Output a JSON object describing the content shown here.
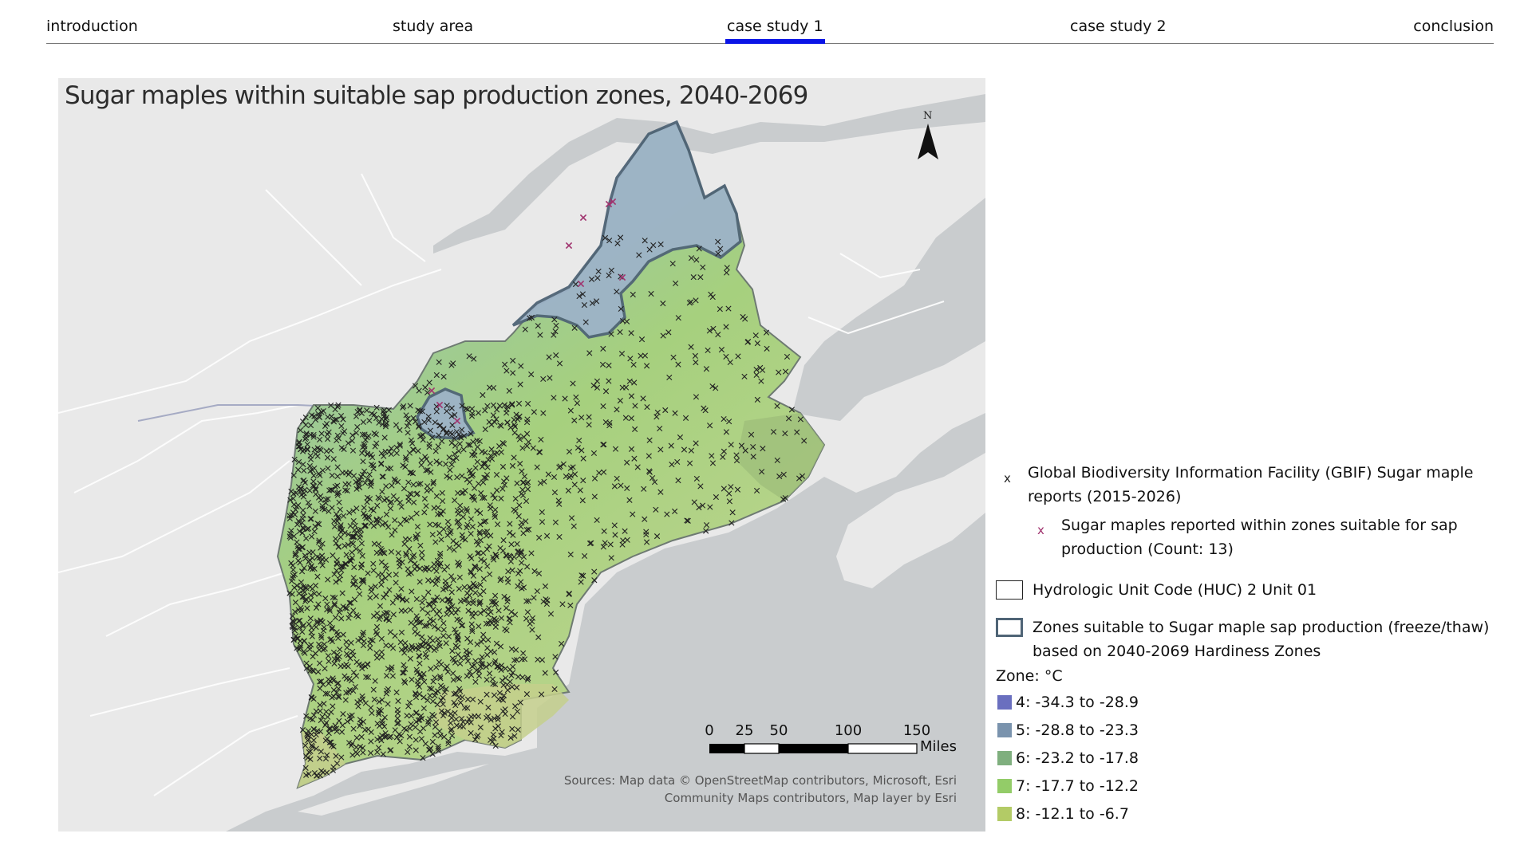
{
  "nav": {
    "items": [
      {
        "label": "introduction",
        "active": false
      },
      {
        "label": "study area",
        "active": false
      },
      {
        "label": "case study 1",
        "active": true
      },
      {
        "label": "case study 2",
        "active": false
      },
      {
        "label": "conclusion",
        "active": false
      }
    ],
    "active_color": "#0a14e6"
  },
  "map": {
    "title": "Sugar maples within suitable sap production zones, 2040-2069",
    "north_label": "N",
    "scale_bar": {
      "ticks": [
        "0",
        "25",
        "50",
        "100",
        "150"
      ],
      "unit": "Miles"
    },
    "attribution_lines": [
      "Sources: Map data © OpenStreetMap contributors, Microsoft, Esri",
      "Community Maps contributors, Map layer by Esri"
    ],
    "colors": {
      "water": "#c9ccce",
      "land": "#e9e9e9",
      "gbif_marker": "#222222",
      "suitable_marker": "#a0336e",
      "suitable_zone_outline": "#4f6476"
    }
  },
  "legend": {
    "gbif_label": "Global Biodiversity Information Facility (GBIF) Sugar maple reports (2015-2026)",
    "gbif_marker": "x",
    "suitable_label": "Sugar maples reported within zones suitable for sap production (Count: 13)",
    "suitable_marker": "x",
    "huc_label": "Hydrologic Unit Code (HUC) 2 Unit 01",
    "zones_label": "Zones suitable to Sugar maple sap production (freeze/thaw) based on 2040-2069 Hardiness Zones",
    "zone_heading": "Zone: °C",
    "zones": [
      {
        "label": "4: -34.3 to -28.9",
        "color": "#6a6fbf"
      },
      {
        "label": "5: -28.8 to -23.3",
        "color": "#7a93ad"
      },
      {
        "label": "6: -23.2 to -17.8",
        "color": "#7faf7e"
      },
      {
        "label": "7: -17.7 to -12.2",
        "color": "#93cc68"
      },
      {
        "label": "8: -12.1 to -6.7",
        "color": "#b3cb66"
      }
    ]
  }
}
